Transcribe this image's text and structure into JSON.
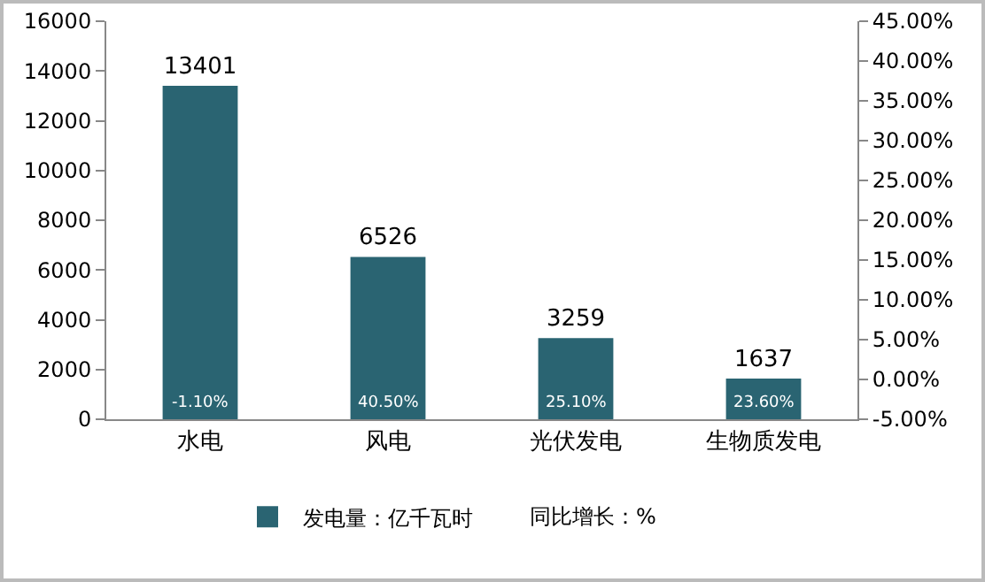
{
  "chart_data": {
    "type": "bar",
    "categories": [
      "水电",
      "风电",
      "光伏发电",
      "生物质发电"
    ],
    "series": [
      {
        "name": "发电量：亿千瓦时",
        "color": "#2a6472",
        "values": [
          13401,
          6526,
          3259,
          1637
        ],
        "value_labels": [
          "13401",
          "6526",
          "3259",
          "1637"
        ]
      }
    ],
    "annotations": [
      "-1.10%",
      "40.50%",
      "25.10%",
      "23.60%",
      "同比增长：%"
    ],
    "ylim": [
      0,
      16000
    ],
    "yticks": [
      0,
      2000,
      4000,
      6000,
      8000,
      10000,
      12000,
      14000,
      16000
    ],
    "y2lim": [
      -5,
      45
    ],
    "y2ticks": [
      {
        "value": -5,
        "label": "-5.00%"
      },
      {
        "value": 0,
        "label": "0.00%"
      },
      {
        "value": 5,
        "label": "5.00%"
      },
      {
        "value": 10,
        "label": "10.00%"
      },
      {
        "value": 15,
        "label": "15.00%"
      },
      {
        "value": 20,
        "label": "20.00%"
      },
      {
        "value": 25,
        "label": "25.00%"
      },
      {
        "value": 30,
        "label": "30.00%"
      },
      {
        "value": 35,
        "label": "35.00%"
      },
      {
        "value": 40,
        "label": "40.00%"
      },
      {
        "value": 45,
        "label": "45.00%"
      }
    ],
    "grid": false,
    "legend": "bottom"
  }
}
